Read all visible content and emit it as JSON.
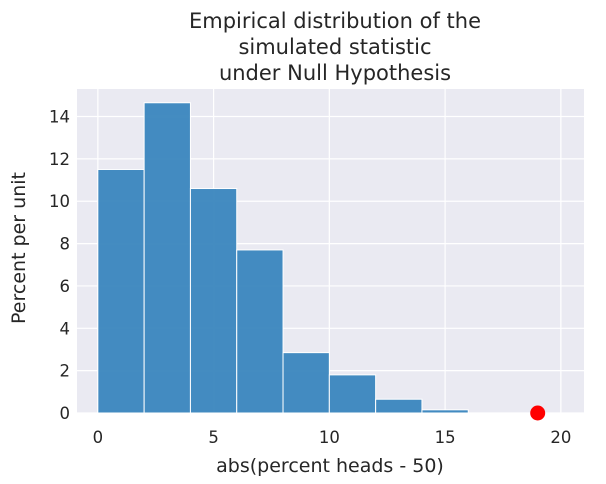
{
  "chart_data": {
    "type": "bar",
    "title_lines": [
      "Empirical distribution of the",
      "simulated statistic",
      "under Null Hypothesis"
    ],
    "xlabel": "abs(percent heads - 50)",
    "ylabel": "Percent per unit",
    "xlim": [
      -0.9,
      21.0
    ],
    "ylim": [
      0,
      15.3
    ],
    "xticks": [
      0,
      5,
      10,
      15,
      20
    ],
    "yticks": [
      0,
      2,
      4,
      6,
      8,
      10,
      12,
      14
    ],
    "grid": true,
    "bin_edges": [
      0,
      2,
      4,
      6,
      8,
      10,
      12,
      14,
      16
    ],
    "values": [
      11.5,
      14.65,
      10.6,
      7.7,
      2.85,
      1.8,
      0.65,
      0.15
    ],
    "bar_color": "#3a86be",
    "background_color": "#eaeaf2",
    "observed_point": {
      "x": 19,
      "y": 0,
      "color": "#ff0000"
    }
  }
}
